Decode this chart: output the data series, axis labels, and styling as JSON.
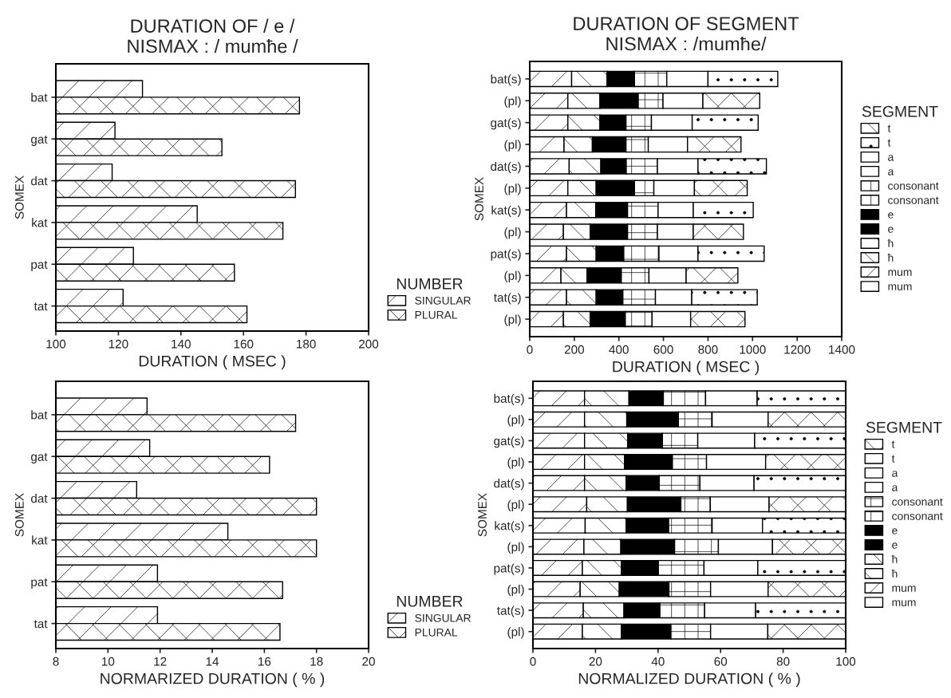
{
  "chart_data": [
    {
      "type": "bar",
      "orientation": "horizontal",
      "title": "DURATION OF / e /\nNISMAX : / mumħe /",
      "xlabel": "DURATION ( MSEC )",
      "ylabel": "SOMEX",
      "legend_title": "NUMBER",
      "legend": "bottom right",
      "categories": [
        "bat",
        "gat",
        "dat",
        "kat",
        "pat",
        "tat"
      ],
      "series": [
        {
          "name": "SINGULAR",
          "color": "#000000",
          "values": [
            127.7,
            118.9,
            118,
            145.2,
            124.8,
            121.5
          ]
        },
        {
          "name": "PLURAL",
          "color": "#000000",
          "values": [
            177.9,
            153.1,
            176.6,
            172.6,
            157.1,
            161.1
          ]
        }
      ],
      "xlim": [
        100,
        200
      ],
      "xticks": [
        100,
        120,
        140,
        160,
        180,
        200
      ]
    },
    {
      "type": "bar",
      "orientation": "horizontal",
      "stacked": true,
      "title": "DURATION OF SEGMENT\nNISMAX : /mumħe/",
      "xlabel": "DURATION ( MSEC )",
      "ylabel": "SOMEX",
      "legend_title": "SEGMENT",
      "legend": "right",
      "categories": [
        "bat(s)",
        "(pl)",
        "gat(s)",
        "(pl)",
        "dat(s)",
        "(pl)",
        "kat(s)",
        "(pl)",
        "pat(s)",
        "(pl)",
        "tat(s)",
        "(pl)"
      ],
      "series": [
        {
          "name": "mum",
          "color": "#000000",
          "values": [
            188,
            null,
            171,
            null,
            177,
            null,
            165,
            null,
            165,
            null,
            165,
            null
          ]
        },
        {
          "name": "mum",
          "color": "#000000",
          "values": [
            null,
            171,
            null,
            154,
            null,
            171,
            null,
            151,
            null,
            140,
            null,
            151
          ]
        },
        {
          "name": "ħ",
          "color": "#000000",
          "values": [
            159,
            null,
            144,
            null,
            142,
            null,
            131,
            null,
            133,
            null,
            133,
            null
          ]
        },
        {
          "name": "ħ",
          "color": "#000000",
          "values": [
            null,
            144,
            null,
            127,
            null,
            127,
            null,
            120,
            null,
            117,
            null,
            120
          ]
        },
        {
          "name": "e",
          "color": "#000000",
          "values": [
            123,
            null,
            117,
            null,
            114,
            null,
            143,
            null,
            124,
            null,
            120,
            null
          ]
        },
        {
          "name": "e",
          "color": "#000000",
          "values": [
            null,
            172,
            null,
            151,
            null,
            172,
            null,
            168,
            null,
            154,
            null,
            158
          ]
        },
        {
          "name": "consonant",
          "color": "#000000",
          "values": [
            145,
            null,
            114,
            null,
            140,
            null,
            137,
            null,
            158,
            null,
            146,
            null
          ]
        },
        {
          "name": "consonant",
          "color": "#000000",
          "values": [
            null,
            111,
            null,
            100,
            null,
            87,
            null,
            134,
            null,
            124,
            null,
            120
          ]
        },
        {
          "name": "a",
          "color": "#ffffff",
          "values": [
            185,
            null,
            183,
            null,
            182,
            null,
            158,
            null,
            175,
            null,
            163,
            null
          ]
        },
        {
          "name": "a",
          "color": "#ffffff",
          "values": [
            null,
            179,
            null,
            176,
            null,
            182,
            null,
            161,
            null,
            167,
            null,
            173
          ]
        },
        {
          "name": "t",
          "color": "#000000",
          "values": [
            313,
            null,
            296,
            null,
            307,
            null,
            269,
            null,
            297,
            null,
            294,
            null
          ]
        },
        {
          "name": "t",
          "color": "#000000",
          "values": [
            null,
            255,
            null,
            240,
            null,
            237,
            null,
            225,
            null,
            232,
            null,
            244
          ]
        }
      ],
      "xlim": [
        0,
        1400
      ],
      "xticks": [
        0,
        200,
        400,
        600,
        800,
        1000,
        1200,
        1400
      ]
    },
    {
      "type": "bar",
      "orientation": "horizontal",
      "xlabel": "NORMARIZED DURATION ( % )",
      "ylabel": "SOMEX",
      "legend_title": "NUMBER",
      "legend": "bottom right",
      "categories": [
        "bat",
        "gat",
        "dat",
        "kat",
        "pat",
        "tat"
      ],
      "series": [
        {
          "name": "SINGULAR",
          "color": "#000000",
          "values": [
            11.5,
            11.6,
            11.1,
            14.6,
            11.9,
            11.9
          ]
        },
        {
          "name": "PLURAL",
          "color": "#000000",
          "values": [
            17.2,
            16.2,
            18,
            18,
            16.7,
            16.6
          ]
        }
      ],
      "xlim": [
        8,
        20
      ],
      "xticks": [
        8,
        10,
        12,
        14,
        16,
        18,
        20
      ]
    },
    {
      "type": "bar",
      "orientation": "horizontal",
      "stacked": true,
      "xlabel": "NORMALIZED DURATION ( % )",
      "ylabel": "SOMEX",
      "legend_title": "SEGMENT",
      "legend": "right",
      "categories": [
        "bat(s)",
        "(pl)",
        "gat(s)",
        "(pl)",
        "dat(s)",
        "(pl)",
        "kat(s)",
        "(pl)",
        "pat(s)",
        "(pl)",
        "tat(s)",
        "(pl)"
      ],
      "series": [
        {
          "name": "mum",
          "color": "#000000",
          "values": [
            16.5,
            null,
            16.5,
            null,
            16.5,
            null,
            16.7,
            null,
            15.8,
            null,
            16.1,
            null
          ]
        },
        {
          "name": "mum",
          "color": "#000000",
          "values": [
            null,
            16.5,
            null,
            16.5,
            null,
            17.2,
            null,
            16.3,
            null,
            15.1,
            null,
            15.8
          ]
        },
        {
          "name": "ħ",
          "color": "#000000",
          "values": [
            14.2,
            null,
            13.8,
            null,
            13.3,
            null,
            13.1,
            null,
            12.5,
            null,
            13,
            null
          ]
        },
        {
          "name": "ħ",
          "color": "#000000",
          "values": [
            null,
            13.5,
            null,
            12.8,
            null,
            13,
            null,
            11.8,
            null,
            12.5,
            null,
            12.5
          ]
        },
        {
          "name": "e",
          "color": "#000000",
          "values": [
            11,
            null,
            11.1,
            null,
            10.6,
            null,
            13.6,
            null,
            11.8,
            null,
            11.5,
            null
          ]
        },
        {
          "name": "e",
          "color": "#000000",
          "values": [
            null,
            16.5,
            null,
            15.3,
            null,
            17.1,
            null,
            17.2,
            null,
            15.9,
            null,
            15.7
          ]
        },
        {
          "name": "consonant",
          "color": "#000000",
          "values": [
            13.5,
            null,
            11.3,
            null,
            13,
            null,
            13.9,
            null,
            14.6,
            null,
            14.3,
            null
          ]
        },
        {
          "name": "consonant",
          "color": "#000000",
          "values": [
            null,
            10.8,
            null,
            10.9,
            null,
            9.4,
            null,
            14,
            null,
            13.3,
            null,
            12.8
          ]
        },
        {
          "name": "a",
          "color": "#ffffff",
          "values": [
            16.5,
            null,
            18.2,
            null,
            17.3,
            null,
            16.1,
            null,
            17.2,
            null,
            16.3,
            null
          ]
        },
        {
          "name": "a",
          "color": "#ffffff",
          "values": [
            null,
            17.9,
            null,
            18.9,
            null,
            18.8,
            null,
            17.3,
            null,
            18.4,
            null,
            18.3
          ]
        },
        {
          "name": "t",
          "color": "#000000",
          "values": [
            28.3,
            null,
            29.1,
            null,
            29.3,
            null,
            26.6,
            null,
            28.1,
            null,
            28.8,
            null
          ]
        },
        {
          "name": "t",
          "color": "#000000",
          "values": [
            null,
            24.8,
            null,
            25.6,
            null,
            24.5,
            null,
            23.4,
            null,
            24.8,
            null,
            24.9
          ]
        }
      ],
      "xlim": [
        0,
        100
      ],
      "xticks": [
        0,
        20,
        40,
        60,
        80,
        100
      ]
    }
  ]
}
